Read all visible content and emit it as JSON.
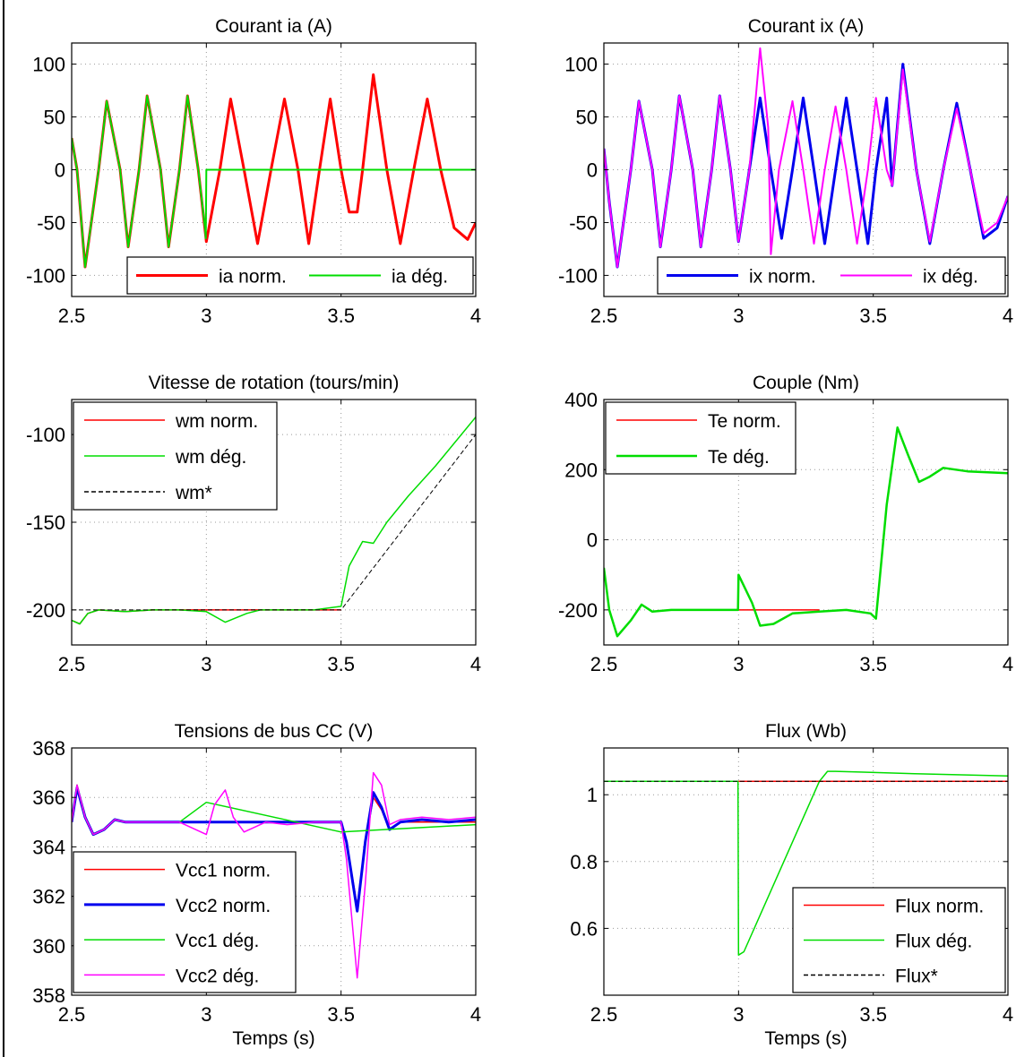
{
  "figure": {
    "x_unit_label": "Temps (s)"
  },
  "chart_data": [
    {
      "type": "line",
      "title": "Courant ia (A)",
      "xlabel": "",
      "ylabel": "",
      "xlim": [
        2.5,
        4
      ],
      "ylim": [
        -120,
        120
      ],
      "xticks": [
        2.5,
        3,
        3.5,
        4
      ],
      "xtick_labels": [
        "2.5",
        "3",
        "3.5",
        "4"
      ],
      "yticks": [
        -100,
        -50,
        0,
        50,
        100
      ],
      "ytick_labels": [
        "-100",
        "-50",
        "0",
        "50",
        "100"
      ],
      "legend_position": "bottom-right",
      "series": [
        {
          "name": "ia norm.",
          "color": "#ff0000",
          "width": 3,
          "x": [
            2.5,
            2.52,
            2.55,
            2.6,
            2.63,
            2.68,
            2.71,
            2.75,
            2.78,
            2.83,
            2.86,
            2.9,
            2.93,
            2.97,
            3.0,
            3.05,
            3.09,
            3.14,
            3.19,
            3.24,
            3.29,
            3.34,
            3.38,
            3.42,
            3.46,
            3.5,
            3.53,
            3.56,
            3.58,
            3.62,
            3.67,
            3.72,
            3.77,
            3.82,
            3.87,
            3.92,
            3.97,
            4.0
          ],
          "y": [
            30,
            0,
            -92,
            0,
            65,
            0,
            -73,
            0,
            70,
            0,
            -73,
            0,
            70,
            0,
            -68,
            0,
            67,
            0,
            -70,
            0,
            67,
            0,
            -70,
            0,
            67,
            0,
            -40,
            -40,
            0,
            90,
            0,
            -70,
            0,
            67,
            0,
            -55,
            -66,
            -50
          ]
        },
        {
          "name": "ia dég.",
          "color": "#00dd00",
          "width": 2,
          "x": [
            2.5,
            2.52,
            2.55,
            2.6,
            2.63,
            2.68,
            2.71,
            2.75,
            2.78,
            2.83,
            2.86,
            2.9,
            2.93,
            2.97,
            2.995,
            2.998,
            3.0,
            3.3,
            3.6,
            4.0
          ],
          "y": [
            30,
            0,
            -92,
            0,
            65,
            0,
            -73,
            0,
            70,
            0,
            -73,
            0,
            70,
            0,
            -55,
            -65,
            0,
            0,
            0,
            0
          ]
        }
      ]
    },
    {
      "type": "line",
      "title": "Courant ix (A)",
      "xlabel": "",
      "ylabel": "",
      "xlim": [
        2.5,
        4
      ],
      "ylim": [
        -120,
        120
      ],
      "xticks": [
        2.5,
        3,
        3.5,
        4
      ],
      "xtick_labels": [
        "2.5",
        "3",
        "3.5",
        "4"
      ],
      "yticks": [
        -100,
        -50,
        0,
        50,
        100
      ],
      "ytick_labels": [
        "-100",
        "-50",
        "0",
        "50",
        "100"
      ],
      "legend_position": "bottom-right",
      "series": [
        {
          "name": "ix norm.",
          "color": "#0000ee",
          "width": 3,
          "x": [
            2.5,
            2.52,
            2.55,
            2.6,
            2.63,
            2.68,
            2.71,
            2.75,
            2.78,
            2.83,
            2.86,
            2.9,
            2.93,
            2.97,
            3.0,
            3.04,
            3.08,
            3.12,
            3.16,
            3.2,
            3.24,
            3.28,
            3.32,
            3.36,
            3.4,
            3.44,
            3.48,
            3.51,
            3.55,
            3.57,
            3.61,
            3.66,
            3.71,
            3.76,
            3.81,
            3.86,
            3.91,
            3.96,
            4.0
          ],
          "y": [
            20,
            -30,
            -92,
            0,
            65,
            0,
            -73,
            0,
            70,
            0,
            -73,
            0,
            70,
            0,
            -68,
            0,
            68,
            0,
            -65,
            0,
            68,
            0,
            -70,
            0,
            68,
            0,
            -70,
            0,
            68,
            -15,
            100,
            0,
            -70,
            0,
            63,
            0,
            -65,
            -55,
            -25
          ]
        },
        {
          "name": "ix dég.",
          "color": "#ff00ff",
          "width": 2,
          "x": [
            2.5,
            2.52,
            2.55,
            2.6,
            2.63,
            2.68,
            2.71,
            2.75,
            2.78,
            2.83,
            2.86,
            2.9,
            2.93,
            2.97,
            3.0,
            3.04,
            3.08,
            3.11,
            3.12,
            3.15,
            3.2,
            3.24,
            3.28,
            3.32,
            3.36,
            3.4,
            3.44,
            3.48,
            3.51,
            3.55,
            3.57,
            3.61,
            3.66,
            3.71,
            3.76,
            3.81,
            3.86,
            3.91,
            3.96,
            4.0
          ],
          "y": [
            20,
            -30,
            -92,
            0,
            65,
            0,
            -73,
            0,
            70,
            0,
            -73,
            0,
            70,
            0,
            -68,
            0,
            115,
            40,
            -80,
            0,
            65,
            0,
            -70,
            0,
            60,
            0,
            -70,
            0,
            68,
            0,
            -15,
            95,
            0,
            -68,
            0,
            58,
            0,
            -60,
            -50,
            -25
          ]
        }
      ]
    },
    {
      "type": "line",
      "title": "Vitesse de rotation (tours/min)",
      "xlabel": "",
      "ylabel": "",
      "xlim": [
        2.5,
        4
      ],
      "ylim": [
        -220,
        -80
      ],
      "xticks": [
        2.5,
        3,
        3.5,
        4
      ],
      "xtick_labels": [
        "2.5",
        "3",
        "3.5",
        "4"
      ],
      "yticks": [
        -200,
        -150,
        -100
      ],
      "ytick_labels": [
        "-200",
        "-150",
        "-100"
      ],
      "legend_position": "top-left",
      "series": [
        {
          "name": "wm norm.",
          "color": "#ff0000",
          "width": 1.5,
          "x": [
            2.5,
            2.53,
            2.56,
            2.6,
            2.7,
            2.8,
            2.9,
            3.0,
            3.2,
            3.4,
            3.5
          ],
          "y": [
            -206,
            -208,
            -202,
            -200,
            -201,
            -200,
            -200,
            -200,
            -200,
            -200,
            -200
          ]
        },
        {
          "name": "wm dég.",
          "color": "#00dd00",
          "width": 1.5,
          "x": [
            2.5,
            2.53,
            2.56,
            2.6,
            2.7,
            2.8,
            2.9,
            3.0,
            3.07,
            3.15,
            3.2,
            3.3,
            3.4,
            3.5,
            3.53,
            3.58,
            3.62,
            3.67,
            3.75,
            3.85,
            4.0
          ],
          "y": [
            -206,
            -208,
            -202,
            -200,
            -201,
            -200,
            -200,
            -201,
            -207,
            -202,
            -200,
            -200,
            -200,
            -198,
            -175,
            -161,
            -162,
            -150,
            -135,
            -118,
            -90
          ]
        },
        {
          "name": "wm*",
          "color": "#000000",
          "width": 1,
          "dash": "5,3",
          "x": [
            2.5,
            3.5,
            4.0
          ],
          "y": [
            -200,
            -200,
            -100
          ]
        }
      ]
    },
    {
      "type": "line",
      "title": "Couple (Nm)",
      "xlabel": "",
      "ylabel": "",
      "xlim": [
        2.5,
        4
      ],
      "ylim": [
        -300,
        400
      ],
      "xticks": [
        2.5,
        3,
        3.5,
        4
      ],
      "xtick_labels": [
        "2.5",
        "3",
        "3.5",
        "4"
      ],
      "yticks": [
        -200,
        0,
        200,
        400
      ],
      "ytick_labels": [
        "-200",
        "0",
        "200",
        "400"
      ],
      "legend_position": "top-left",
      "series": [
        {
          "name": "Te norm.",
          "color": "#ff0000",
          "width": 1.5,
          "x": [
            2.5,
            2.52,
            2.55,
            2.6,
            2.64,
            2.68,
            2.75,
            2.85,
            2.95,
            3.0,
            3.1,
            3.2,
            3.3
          ],
          "y": [
            -80,
            -200,
            -275,
            -230,
            -185,
            -205,
            -200,
            -200,
            -200,
            -200,
            -200,
            -200,
            -200
          ]
        },
        {
          "name": "Te dég.",
          "color": "#00dd00",
          "width": 2.5,
          "x": [
            2.5,
            2.52,
            2.55,
            2.6,
            2.64,
            2.68,
            2.75,
            2.85,
            2.95,
            2.998,
            3.0,
            3.05,
            3.08,
            3.13,
            3.2,
            3.3,
            3.4,
            3.49,
            3.51,
            3.55,
            3.59,
            3.63,
            3.67,
            3.71,
            3.76,
            3.85,
            4.0
          ],
          "y": [
            -80,
            -200,
            -275,
            -230,
            -185,
            -205,
            -200,
            -200,
            -200,
            -200,
            -100,
            -180,
            -245,
            -240,
            -210,
            -205,
            -200,
            -210,
            -225,
            100,
            320,
            240,
            165,
            180,
            205,
            195,
            190
          ]
        }
      ]
    },
    {
      "type": "line",
      "title": "Tensions de bus CC (V)",
      "xlabel": "Temps (s)",
      "ylabel": "",
      "xlim": [
        2.5,
        4
      ],
      "ylim": [
        358,
        368
      ],
      "xticks": [
        2.5,
        3,
        3.5,
        4
      ],
      "xtick_labels": [
        "2.5",
        "3",
        "3.5",
        "4"
      ],
      "yticks": [
        358,
        360,
        362,
        364,
        366,
        368
      ],
      "ytick_labels": [
        "358",
        "360",
        "362",
        "364",
        "366",
        "368"
      ],
      "legend_position": "bottom-left",
      "series": [
        {
          "name": "Vcc1 norm.",
          "color": "#ff0000",
          "width": 1.5,
          "x": [
            2.5,
            2.52,
            2.55,
            2.58,
            2.62,
            2.66,
            2.7,
            2.8,
            2.9,
            3.0,
            3.2,
            3.4,
            3.5,
            3.52,
            3.56,
            3.59,
            3.62,
            3.65,
            3.68,
            3.72,
            3.8,
            3.9,
            4.0
          ],
          "y": [
            365,
            366.5,
            365.2,
            364.5,
            364.7,
            365.1,
            365,
            365,
            365,
            365,
            365,
            365,
            365,
            364.2,
            361.6,
            364.2,
            366,
            365.5,
            364.7,
            365,
            365,
            365,
            365
          ]
        },
        {
          "name": "Vcc2 norm.",
          "color": "#0000ee",
          "width": 3,
          "x": [
            2.5,
            2.52,
            2.55,
            2.58,
            2.62,
            2.66,
            2.7,
            2.8,
            2.9,
            3.0,
            3.2,
            3.4,
            3.5,
            3.52,
            3.56,
            3.59,
            3.62,
            3.65,
            3.68,
            3.72,
            3.8,
            3.9,
            4.0
          ],
          "y": [
            365,
            366.4,
            365.2,
            364.5,
            364.7,
            365.1,
            365,
            365,
            365,
            365,
            365,
            365,
            365,
            364.2,
            361.4,
            364.2,
            366.2,
            365.6,
            364.7,
            365,
            365.1,
            365,
            365.1
          ]
        },
        {
          "name": "Vcc1 dég.",
          "color": "#00dd00",
          "width": 1.5,
          "x": [
            2.5,
            2.52,
            2.55,
            2.58,
            2.62,
            2.66,
            2.7,
            2.8,
            2.9,
            3.0,
            3.5,
            4.0
          ],
          "y": [
            365,
            366.5,
            365.2,
            364.5,
            364.7,
            365.1,
            365,
            365,
            365,
            365.8,
            364.6,
            364.9
          ]
        },
        {
          "name": "Vcc2 dég.",
          "color": "#ff00ff",
          "width": 1.5,
          "x": [
            2.5,
            2.52,
            2.55,
            2.58,
            2.62,
            2.66,
            2.7,
            2.8,
            2.9,
            3.0,
            3.03,
            3.07,
            3.1,
            3.14,
            3.18,
            3.22,
            3.3,
            3.4,
            3.5,
            3.52,
            3.56,
            3.59,
            3.62,
            3.65,
            3.68,
            3.72,
            3.8,
            3.9,
            4.0
          ],
          "y": [
            365,
            366.5,
            365.2,
            364.5,
            364.7,
            365.1,
            365,
            365,
            365,
            364.5,
            365.7,
            366.3,
            365.2,
            364.6,
            364.8,
            365,
            364.9,
            365,
            365,
            363.5,
            358.7,
            362.5,
            367,
            366.5,
            364.9,
            365.1,
            365.2,
            365.1,
            365.2
          ]
        }
      ]
    },
    {
      "type": "line",
      "title": "Flux (Wb)",
      "xlabel": "Temps (s)",
      "ylabel": "",
      "xlim": [
        2.5,
        4
      ],
      "ylim": [
        0.4,
        1.14
      ],
      "xticks": [
        2.5,
        3,
        3.5,
        4
      ],
      "xtick_labels": [
        "2.5",
        "3",
        "3.5",
        "4"
      ],
      "yticks": [
        0.6,
        0.8,
        1.0
      ],
      "ytick_labels": [
        "0.6",
        "0.8",
        "1"
      ],
      "legend_position": "bottom-right",
      "series": [
        {
          "name": "Flux norm.",
          "color": "#ff0000",
          "width": 1.5,
          "x": [
            2.5,
            3.0,
            3.5,
            4.0
          ],
          "y": [
            1.04,
            1.04,
            1.04,
            1.04
          ]
        },
        {
          "name": "Flux dég.",
          "color": "#00dd00",
          "width": 1.5,
          "x": [
            2.5,
            2.998,
            3.0,
            3.02,
            3.3,
            3.33,
            3.36,
            3.45,
            3.6,
            4.0
          ],
          "y": [
            1.04,
            1.04,
            0.52,
            0.53,
            1.04,
            1.07,
            1.07,
            1.068,
            1.064,
            1.056
          ]
        },
        {
          "name": "Flux*",
          "color": "#000000",
          "width": 1,
          "dash": "5,3",
          "x": [
            2.5,
            4.0
          ],
          "y": [
            1.04,
            1.04
          ]
        }
      ]
    }
  ]
}
